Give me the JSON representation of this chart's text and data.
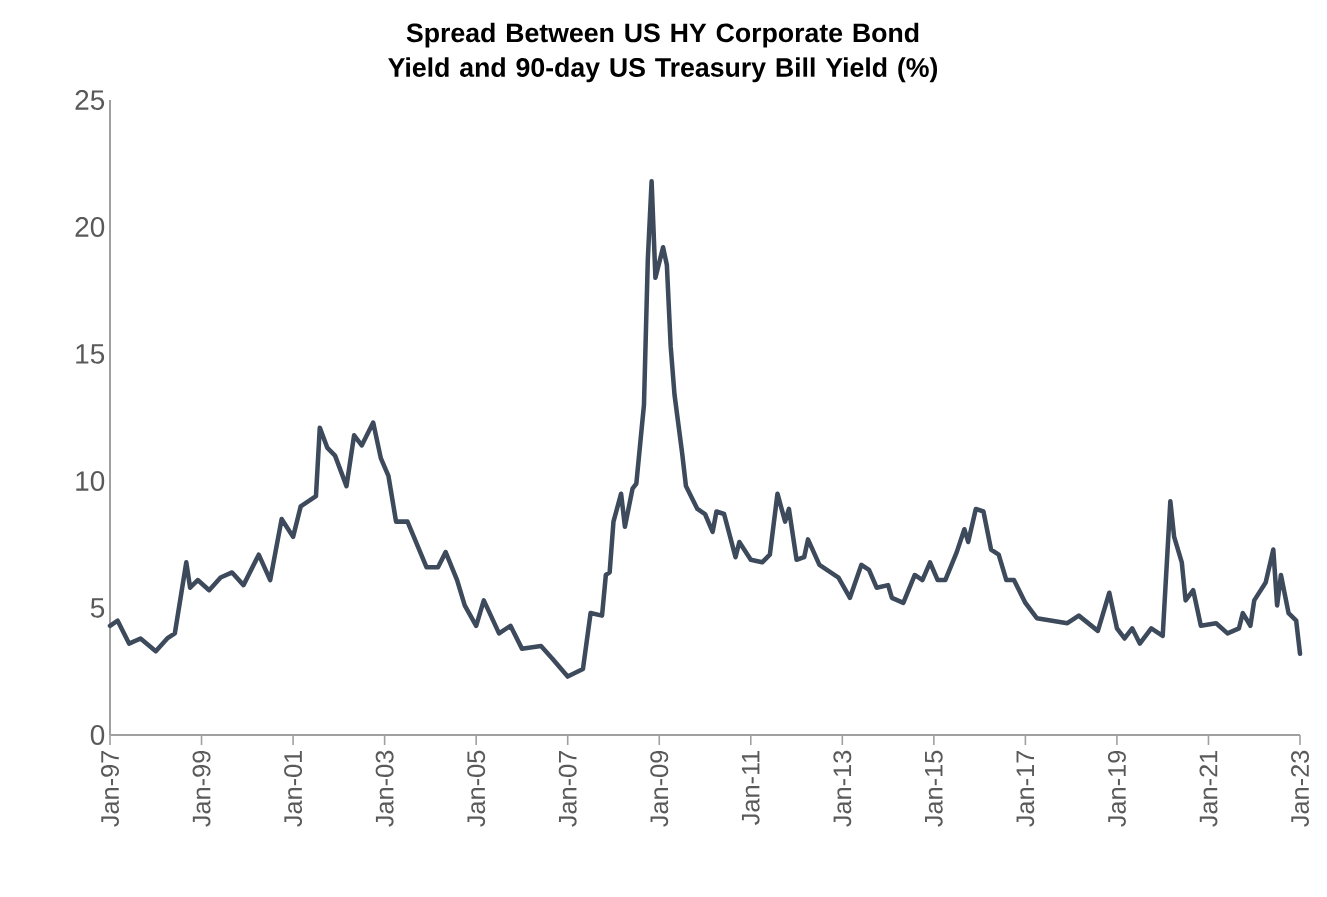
{
  "chart_data": {
    "type": "line",
    "title": "Spread Between US HY Corporate Bond Yield and 90-day US Treasury Bill Yield (%)",
    "x": [
      "1997-01",
      "1997-03",
      "1997-06",
      "1997-09",
      "1998-01",
      "1998-04",
      "1998-06",
      "1998-09",
      "1998-10",
      "1998-12",
      "1999-03",
      "1999-06",
      "1999-09",
      "1999-12",
      "2000-04",
      "2000-07",
      "2000-10",
      "2001-01",
      "2001-03",
      "2001-07",
      "2001-08",
      "2001-10",
      "2001-12",
      "2002-03",
      "2002-05",
      "2002-07",
      "2002-10",
      "2002-12",
      "2003-02",
      "2003-04",
      "2003-07",
      "2003-12",
      "2004-03",
      "2004-05",
      "2004-08",
      "2004-10",
      "2005-01",
      "2005-03",
      "2005-07",
      "2005-10",
      "2006-01",
      "2006-06",
      "2006-09",
      "2007-01",
      "2007-05",
      "2007-07",
      "2007-10",
      "2007-11",
      "2007-12",
      "2008-01",
      "2008-03",
      "2008-04",
      "2008-06",
      "2008-07",
      "2008-09",
      "2008-10",
      "2008-11",
      "2008-12",
      "2009-02",
      "2009-03",
      "2009-04",
      "2009-05",
      "2009-07",
      "2009-08",
      "2009-11",
      "2010-01",
      "2010-03",
      "2010-04",
      "2010-06",
      "2010-09",
      "2010-10",
      "2011-01",
      "2011-04",
      "2011-06",
      "2011-08",
      "2011-10",
      "2011-11",
      "2012-01",
      "2012-03",
      "2012-04",
      "2012-07",
      "2012-12",
      "2013-03",
      "2013-06",
      "2013-08",
      "2013-10",
      "2014-01",
      "2014-02",
      "2014-05",
      "2014-08",
      "2014-10",
      "2014-12",
      "2015-02",
      "2015-04",
      "2015-07",
      "2015-09",
      "2015-10",
      "2015-12",
      "2016-02",
      "2016-04",
      "2016-06",
      "2016-08",
      "2016-10",
      "2017-01",
      "2017-04",
      "2017-12",
      "2018-03",
      "2018-08",
      "2018-11",
      "2019-01",
      "2019-03",
      "2019-05",
      "2019-07",
      "2019-10",
      "2020-01",
      "2020-03",
      "2020-04",
      "2020-06",
      "2020-07",
      "2020-09",
      "2020-11",
      "2021-03",
      "2021-06",
      "2021-09",
      "2021-10",
      "2021-12",
      "2022-01",
      "2022-04",
      "2022-06",
      "2022-07",
      "2022-08",
      "2022-10",
      "2022-12",
      "2023-01"
    ],
    "series": [
      {
        "color": "#3d4a5c",
        "values": [
          4.3,
          4.5,
          3.6,
          3.8,
          3.3,
          3.8,
          4.0,
          6.8,
          5.8,
          6.1,
          5.7,
          6.2,
          6.4,
          5.9,
          7.1,
          6.1,
          8.5,
          7.8,
          9.0,
          9.4,
          12.1,
          11.3,
          11.0,
          9.8,
          11.8,
          11.4,
          12.3,
          10.9,
          10.2,
          8.4,
          8.4,
          6.6,
          6.6,
          7.2,
          6.1,
          5.1,
          4.3,
          5.3,
          4.0,
          4.3,
          3.4,
          3.5,
          3.0,
          2.3,
          2.6,
          4.8,
          4.7,
          6.3,
          6.4,
          8.4,
          9.5,
          8.2,
          9.7,
          9.9,
          13.0,
          18.7,
          21.8,
          18.0,
          19.2,
          18.5,
          15.3,
          13.4,
          11.1,
          9.8,
          8.9,
          8.7,
          8.0,
          8.8,
          8.7,
          7.0,
          7.6,
          6.9,
          6.8,
          7.1,
          9.5,
          8.4,
          8.9,
          6.9,
          7.0,
          7.7,
          6.7,
          6.2,
          5.4,
          6.7,
          6.5,
          5.8,
          5.9,
          5.4,
          5.2,
          6.3,
          6.1,
          6.8,
          6.1,
          6.1,
          7.2,
          8.1,
          7.6,
          8.9,
          8.8,
          7.3,
          7.1,
          6.1,
          6.1,
          5.2,
          4.6,
          4.4,
          4.7,
          4.1,
          5.6,
          4.2,
          3.8,
          4.2,
          3.6,
          4.2,
          3.9,
          9.2,
          7.8,
          6.8,
          5.3,
          5.7,
          4.3,
          4.4,
          4.0,
          4.2,
          4.8,
          4.3,
          5.3,
          6.0,
          7.3,
          5.1,
          6.3,
          4.8,
          4.5,
          3.2
        ]
      }
    ],
    "xlim": [
      "1997-01",
      "2023-01"
    ],
    "xticks": [
      {
        "value": "1997-01",
        "label": "Jan-97"
      },
      {
        "value": "1999-01",
        "label": "Jan-99"
      },
      {
        "value": "2001-01",
        "label": "Jan-01"
      },
      {
        "value": "2003-01",
        "label": "Jan-03"
      },
      {
        "value": "2005-01",
        "label": "Jan-05"
      },
      {
        "value": "2007-01",
        "label": "Jan-07"
      },
      {
        "value": "2009-01",
        "label": "Jan-09"
      },
      {
        "value": "2011-01",
        "label": "Jan-11"
      },
      {
        "value": "2013-01",
        "label": "Jan-13"
      },
      {
        "value": "2015-01",
        "label": "Jan-15"
      },
      {
        "value": "2017-01",
        "label": "Jan-17"
      },
      {
        "value": "2019-01",
        "label": "Jan-19"
      },
      {
        "value": "2021-01",
        "label": "Jan-21"
      },
      {
        "value": "2023-01",
        "label": "Jan-23"
      }
    ],
    "ylim": [
      0,
      25
    ],
    "yticks": [
      0,
      5,
      10,
      15,
      20,
      25
    ],
    "grid": false,
    "marker": "none",
    "line_style": "solid"
  }
}
